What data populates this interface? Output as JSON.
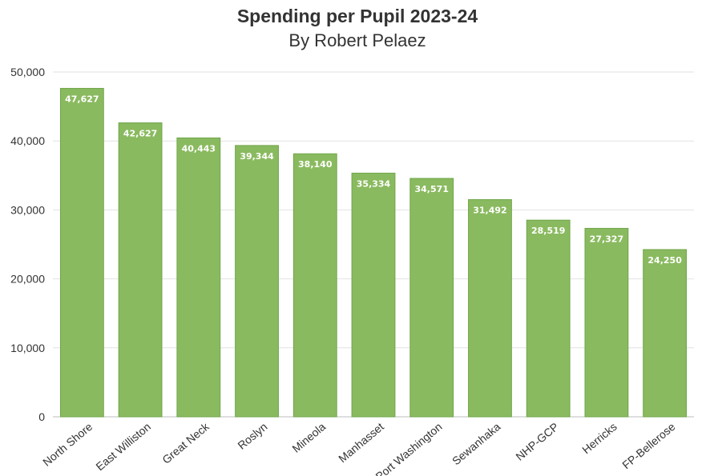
{
  "colors": {
    "bar": "#8aba5f",
    "bar_edge": "#6fa64a",
    "grid": "#e2e2e2",
    "text": "#333333",
    "label": "#ffffff"
  },
  "chart_data": {
    "type": "bar",
    "title": "Spending per Pupil 2023-24",
    "subtitle": "By Robert Pelaez",
    "categories": [
      "North Shore",
      "East Williston",
      "Great Neck",
      "Roslyn",
      "Mineola",
      "Manhasset",
      "Port Washington",
      "Sewanhaka",
      "NHP-GCP",
      "Herricks",
      "FP-Bellerose"
    ],
    "values": [
      47627,
      42627,
      40443,
      39344,
      38140,
      35334,
      34571,
      31492,
      28519,
      27327,
      24250
    ],
    "data_labels": [
      "47,627",
      "42,627",
      "40,443",
      "39,344",
      "38,140",
      "35,334",
      "34,571",
      "31,492",
      "28,519",
      "27,327",
      "24,250"
    ],
    "yticks": [
      0,
      10000,
      20000,
      30000,
      40000,
      50000
    ],
    "ytick_labels": [
      "0",
      "10,000",
      "20,000",
      "30,000",
      "40,000",
      "50,000"
    ],
    "ylim": [
      0,
      50000
    ],
    "grid": true,
    "legend": "none",
    "xlabel": "",
    "ylabel": ""
  }
}
